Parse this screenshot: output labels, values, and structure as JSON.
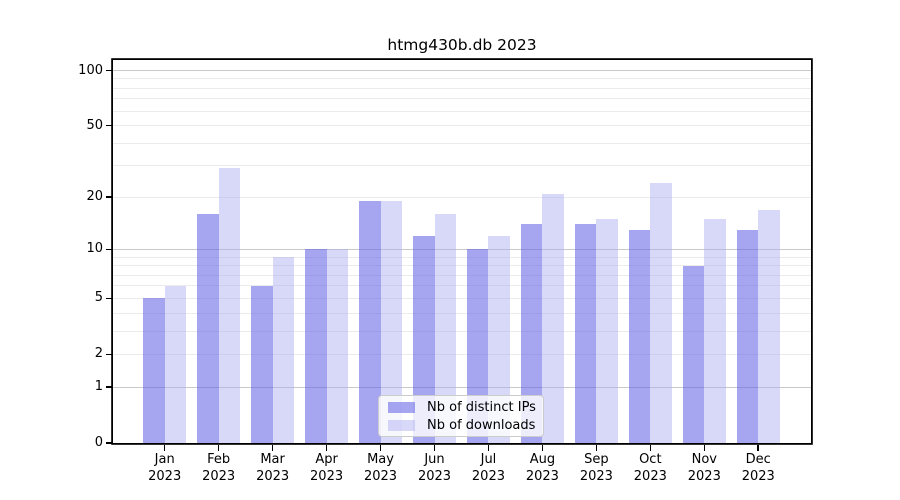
{
  "title": "htmg430b.db 2023",
  "chart_data": {
    "type": "bar",
    "title": "htmg430b.db 2023",
    "scale": "log1p",
    "categories": [
      "Jan",
      "Feb",
      "Mar",
      "Apr",
      "May",
      "Jun",
      "Jul",
      "Aug",
      "Sep",
      "Oct",
      "Nov",
      "Dec"
    ],
    "category_year": "2023",
    "series": [
      {
        "name": "Nb of distinct IPs",
        "color": "rgba(102,102,230,0.58)",
        "values": [
          5,
          16,
          6,
          10,
          19,
          12,
          10,
          14,
          14,
          13,
          8,
          13
        ]
      },
      {
        "name": "Nb of downloads",
        "color": "rgba(170,170,242,0.46)",
        "values": [
          6,
          29,
          9,
          10,
          19,
          16,
          12,
          21,
          15,
          24,
          15,
          17
        ]
      }
    ],
    "y_ticks": [
      100,
      50,
      20,
      10,
      5,
      2,
      1,
      0
    ],
    "major_gridlines": [
      100,
      10,
      1
    ],
    "mid_gridlines": [
      50,
      20,
      5,
      2
    ],
    "minor_gridlines": [
      90,
      80,
      70,
      60,
      40,
      30,
      9,
      8,
      7,
      6,
      4,
      3
    ],
    "ylim": [
      0,
      112
    ],
    "xlabel": "",
    "ylabel": "",
    "grid": true,
    "legend_position": "lower center",
    "legend_entries": [
      "Nb of distinct IPs",
      "Nb of downloads"
    ]
  },
  "colors": {
    "background": "#ffffff",
    "spine": "#000000",
    "grid_major": "#c9c9c9",
    "grid_minor": "#ebebeb",
    "bar_ips_rendered": "#a7a7f0",
    "bar_downloads_rendered": "#d9d9f8",
    "legend_border": "#cccccc"
  }
}
